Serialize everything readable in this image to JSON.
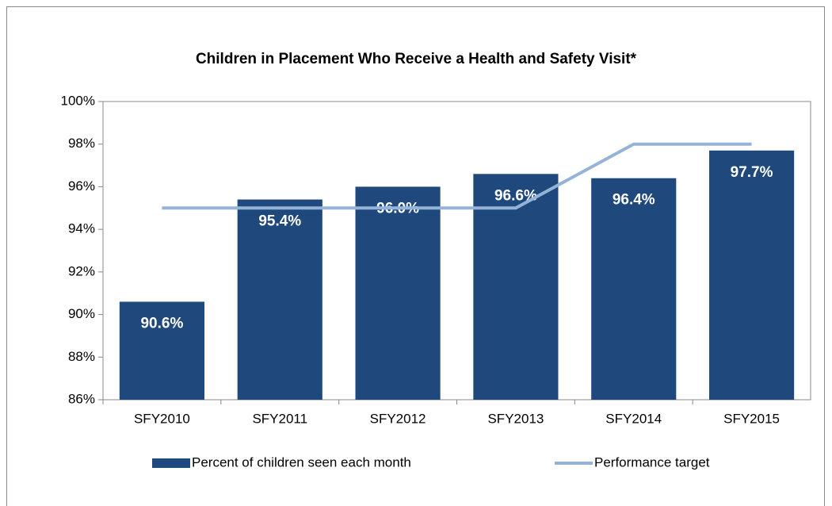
{
  "chart_data": {
    "type": "bar",
    "title": "Children in Placement Who Receive a Health and Safety Visit*",
    "categories": [
      "SFY2010",
      "SFY2011",
      "SFY2012",
      "SFY2013",
      "SFY2014",
      "SFY2015"
    ],
    "series": [
      {
        "name": "Percent of children seen each month",
        "type": "bar",
        "color": "#1f497d",
        "values": [
          90.6,
          95.4,
          96.0,
          96.6,
          96.4,
          97.7
        ],
        "value_labels": [
          "90.6%",
          "95.4%",
          "96.0%",
          "96.6%",
          "96.4%",
          "97.7%"
        ]
      },
      {
        "name": "Performance target",
        "type": "line",
        "color": "#95b3d7",
        "values": [
          95,
          95,
          95,
          95,
          98,
          98
        ]
      }
    ],
    "ylim": [
      86,
      100
    ],
    "yticks": [
      {
        "value": 86,
        "label": "86%"
      },
      {
        "value": 88,
        "label": "88%"
      },
      {
        "value": 90,
        "label": "90%"
      },
      {
        "value": 92,
        "label": "92%"
      },
      {
        "value": 94,
        "label": "94%"
      },
      {
        "value": 96,
        "label": "96%"
      },
      {
        "value": 98,
        "label": "98%"
      },
      {
        "value": 100,
        "label": "100%"
      }
    ],
    "legend": "bottom"
  }
}
